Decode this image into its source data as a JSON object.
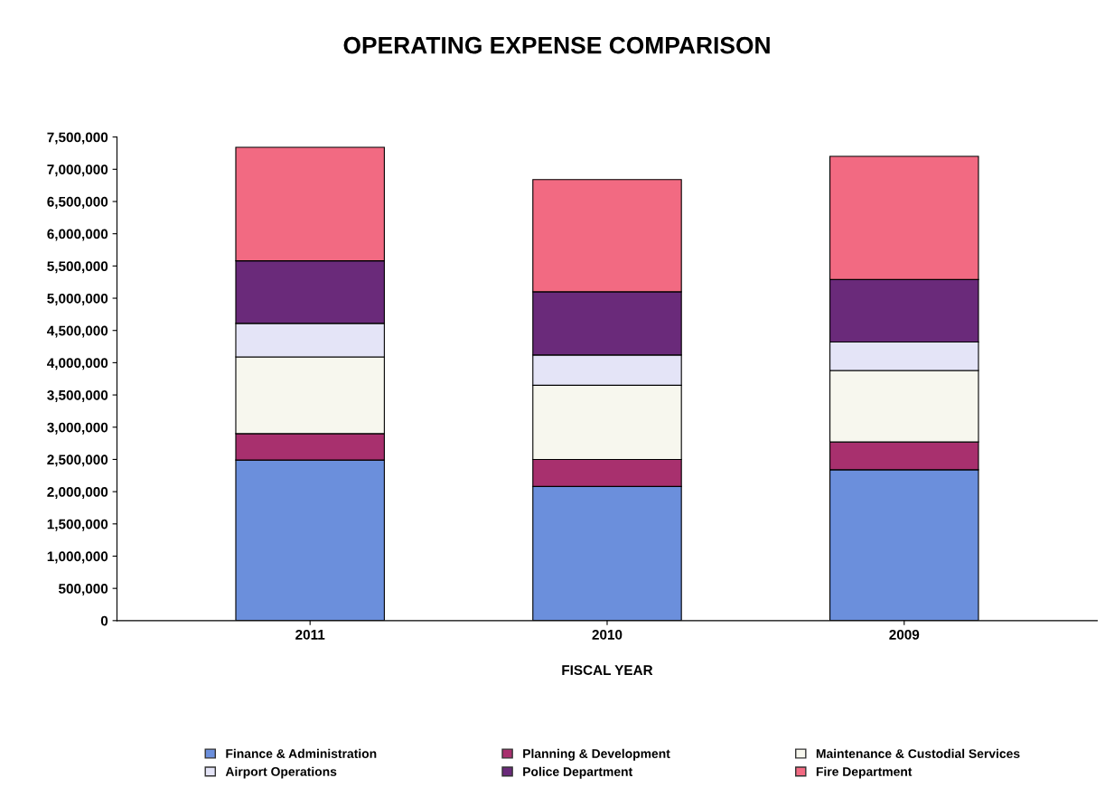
{
  "chart_data": {
    "type": "bar",
    "title": "OPERATING EXPENSE COMPARISON",
    "xlabel": "FISCAL YEAR",
    "categories": [
      "2011",
      "2010",
      "2009"
    ],
    "stacked": true,
    "legend": "bottom",
    "grid": false,
    "ylim": [
      0,
      7500000
    ],
    "yticks": [
      {
        "value": 0,
        "label": "0"
      },
      {
        "value": 500000,
        "label": "500,000"
      },
      {
        "value": 1000000,
        "label": "1,000,000"
      },
      {
        "value": 1500000,
        "label": "1,500,000"
      },
      {
        "value": 2000000,
        "label": "2,000,000"
      },
      {
        "value": 2500000,
        "label": "2,500,000"
      },
      {
        "value": 3000000,
        "label": "3,000,000"
      },
      {
        "value": 3500000,
        "label": "3,500,000"
      },
      {
        "value": 4000000,
        "label": "4,000,000"
      },
      {
        "value": 4500000,
        "label": "4,500,000"
      },
      {
        "value": 5000000,
        "label": "5,000,000"
      },
      {
        "value": 5500000,
        "label": "5,500,000"
      },
      {
        "value": 6000000,
        "label": "6,000,000"
      },
      {
        "value": 6500000,
        "label": "6,500,000"
      },
      {
        "value": 7000000,
        "label": "7,000,000"
      },
      {
        "value": 7500000,
        "label": "7,500,000"
      }
    ],
    "series": [
      {
        "name": "Finance & Administration",
        "color": "#6b8fdc",
        "values": [
          2490000,
          2080000,
          2340000
        ]
      },
      {
        "name": "Planning & Development",
        "color": "#a8306e",
        "values": [
          410000,
          420000,
          430000
        ]
      },
      {
        "name": "Maintenance & Custodial Services",
        "color": "#f7f7ee",
        "values": [
          1190000,
          1150000,
          1110000
        ]
      },
      {
        "name": "Airport Operations",
        "color": "#e4e4f7",
        "values": [
          520000,
          470000,
          440000
        ]
      },
      {
        "name": "Police Department",
        "color": "#6a2a7a",
        "values": [
          970000,
          980000,
          970000
        ]
      },
      {
        "name": "Fire Department",
        "color": "#f26a82",
        "values": [
          1760000,
          1740000,
          1910000
        ]
      }
    ]
  }
}
